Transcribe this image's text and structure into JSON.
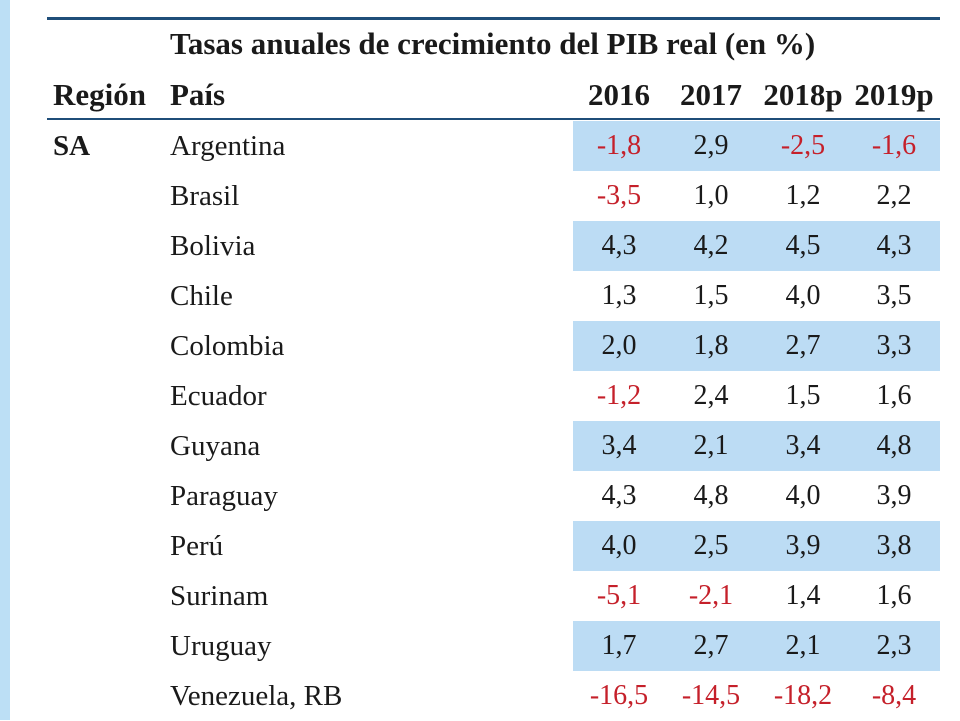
{
  "table": {
    "caption": "Tasas anuales de crecimiento del PIB real (en %)",
    "headers": {
      "region": "Región",
      "country": "País",
      "years": [
        "2016",
        "2017",
        "2018p",
        "2019p"
      ]
    },
    "rows": [
      {
        "region": "SA",
        "country": "Argentina",
        "values": [
          "-1,8",
          "2,9",
          "-2,5",
          "-1,6"
        ],
        "shaded": true
      },
      {
        "region": "",
        "country": "Brasil",
        "values": [
          "-3,5",
          "1,0",
          "1,2",
          "2,2"
        ],
        "shaded": false
      },
      {
        "region": "",
        "country": "Bolivia",
        "values": [
          "4,3",
          "4,2",
          "4,5",
          "4,3"
        ],
        "shaded": true
      },
      {
        "region": "",
        "country": "Chile",
        "values": [
          "1,3",
          "1,5",
          "4,0",
          "3,5"
        ],
        "shaded": false
      },
      {
        "region": "",
        "country": "Colombia",
        "values": [
          "2,0",
          "1,8",
          "2,7",
          "3,3"
        ],
        "shaded": true
      },
      {
        "region": "",
        "country": "Ecuador",
        "values": [
          "-1,2",
          "2,4",
          "1,5",
          "1,6"
        ],
        "shaded": false
      },
      {
        "region": "",
        "country": "Guyana",
        "values": [
          "3,4",
          "2,1",
          "3,4",
          "4,8"
        ],
        "shaded": true
      },
      {
        "region": "",
        "country": "Paraguay",
        "values": [
          "4,3",
          "4,8",
          "4,0",
          "3,9"
        ],
        "shaded": false
      },
      {
        "region": "",
        "country": "Perú",
        "values": [
          "4,0",
          "2,5",
          "3,9",
          "3,8"
        ],
        "shaded": true
      },
      {
        "region": "",
        "country": "Surinam",
        "values": [
          "-5,1",
          "-2,1",
          "1,4",
          "1,6"
        ],
        "shaded": false
      },
      {
        "region": "",
        "country": "Uruguay",
        "values": [
          "1,7",
          "2,7",
          "2,1",
          "2,3"
        ],
        "shaded": true
      },
      {
        "region": "",
        "country": "Venezuela, RB",
        "values": [
          "-16,5",
          "-14,5",
          "-18,2",
          "-8,4"
        ],
        "shaded": false
      }
    ]
  },
  "colors": {
    "negative": "#c5202a",
    "shade": "#bcdcf4",
    "rule": "#1f4e79",
    "left_bar": "#bcdff5"
  }
}
